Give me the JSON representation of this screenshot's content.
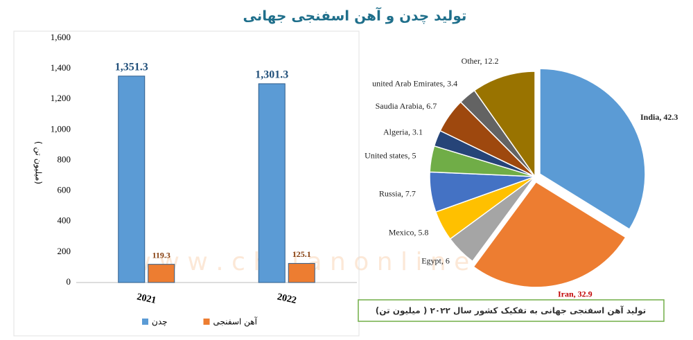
{
  "title": "تولید چدن و آهن اسفنجی جهانی",
  "watermark": "w w w . c h i l a n o n l i n e . c o m",
  "chart_data": [
    {
      "type": "bar",
      "y_label": "( میلیون تن)",
      "categories": [
        "2021",
        "2022"
      ],
      "series": [
        {
          "name": "چدن",
          "color": "#5b9bd5",
          "values": [
            1351.3,
            1301.3
          ],
          "value_labels": [
            "1,351.3",
            "1,301.3"
          ]
        },
        {
          "name": "آهن اسفنجی",
          "color": "#ed7d31",
          "values": [
            119.3,
            125.1
          ]
        }
      ],
      "ylim": [
        0,
        1600
      ],
      "yticks": [
        0,
        200,
        400,
        600,
        800,
        {
          "value": 1000,
          "label": "1,000"
        },
        {
          "value": 1200,
          "label": "1,200"
        },
        {
          "value": 1400,
          "label": "1,400"
        },
        {
          "value": 1600,
          "label": "1,600"
        }
      ]
    },
    {
      "type": "pie",
      "subtitle": "تولید آهن اسفنجی جهانی به تفکیک کشور سال ۲۰۲۲ ( میلیون تن)",
      "values": [
        42.3,
        32.9,
        6,
        5.8,
        7.7,
        5,
        3.1,
        6.7,
        3.4,
        12.2
      ],
      "value_labels": [
        "India, 42.3",
        "Iran, 32.9",
        "Egypt, 6",
        "Mexico, 5.8",
        "Russia, 7.7",
        "United states, 5",
        "Algeria, 3.1",
        "Saudia Arabia, 6.7",
        "united Arab Emirates, 3.4",
        "Other, 12.2"
      ],
      "colors": [
        "#5b9bd5",
        "#ed7d31",
        "#a5a5a5",
        "#ffc000",
        "#4472c4",
        "#70ad47",
        "#264478",
        "#9e480e",
        "#636363",
        "#997300"
      ]
    }
  ]
}
